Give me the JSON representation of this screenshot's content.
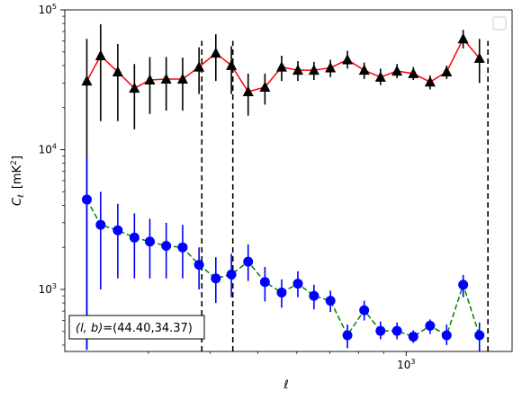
{
  "chart_data": {
    "type": "line",
    "xscale": "log",
    "yscale": "log",
    "xlabel": "ℓ",
    "ylabel_main": "C",
    "ylabel_sub": "ℓ",
    "ylabel_unit": "[mK",
    "ylabel_unit_sup": "2",
    "ylabel_unit_end": "]",
    "xlim": [
      203,
      1640
    ],
    "ylim": [
      360,
      100000
    ],
    "x_major_ticks": [
      {
        "value": 1000,
        "base": "10",
        "exp": "3"
      }
    ],
    "y_major_ticks": [
      {
        "value": 1000,
        "base": "10",
        "exp": "3"
      },
      {
        "value": 10000,
        "base": "10",
        "exp": "4"
      },
      {
        "value": 100000,
        "base": "10",
        "exp": "5"
      }
    ],
    "annotation": {
      "text": "(l, b)=(44.40,34.37)",
      "italic_part": "(l, b)",
      "rest": "=(44.40,34.37)"
    },
    "legend": {
      "placement": "top-right",
      "entries": []
    },
    "vertical_lines": [
      385,
      445,
      1465
    ],
    "series": [
      {
        "color": "#ff0000",
        "marker": "triangle",
        "marker_color": "#000000",
        "errbar_color": "#000000",
        "linestyle": "solid",
        "points": [
          {
            "x": 225,
            "y": 31000,
            "lo": 370,
            "hi": 62000
          },
          {
            "x": 240,
            "y": 47000,
            "lo": 16000,
            "hi": 79000
          },
          {
            "x": 260,
            "y": 36000,
            "lo": 16000,
            "hi": 57000
          },
          {
            "x": 281,
            "y": 27500,
            "lo": 14000,
            "hi": 41000
          },
          {
            "x": 302,
            "y": 31500,
            "lo": 18000,
            "hi": 46000
          },
          {
            "x": 326,
            "y": 32000,
            "lo": 19000,
            "hi": 46000
          },
          {
            "x": 352,
            "y": 32000,
            "lo": 19000,
            "hi": 45500
          },
          {
            "x": 380,
            "y": 39000,
            "lo": 25000,
            "hi": 54000
          },
          {
            "x": 411,
            "y": 49000,
            "lo": 31000,
            "hi": 67000
          },
          {
            "x": 442,
            "y": 40000,
            "lo": 25000,
            "hi": 55000
          },
          {
            "x": 478,
            "y": 26000,
            "lo": 17500,
            "hi": 35000
          },
          {
            "x": 517,
            "y": 28000,
            "lo": 21000,
            "hi": 35000
          },
          {
            "x": 559,
            "y": 39000,
            "lo": 31000,
            "hi": 47000
          },
          {
            "x": 603,
            "y": 37000,
            "lo": 31000,
            "hi": 43000
          },
          {
            "x": 650,
            "y": 37000,
            "lo": 31500,
            "hi": 42500
          },
          {
            "x": 702,
            "y": 38500,
            "lo": 33000,
            "hi": 44000
          },
          {
            "x": 760,
            "y": 44000,
            "lo": 38000,
            "hi": 51000
          },
          {
            "x": 822,
            "y": 37000,
            "lo": 32000,
            "hi": 42000
          },
          {
            "x": 887,
            "y": 33000,
            "lo": 29000,
            "hi": 38000
          },
          {
            "x": 958,
            "y": 36500,
            "lo": 32500,
            "hi": 41000
          },
          {
            "x": 1034,
            "y": 35000,
            "lo": 31500,
            "hi": 39000
          },
          {
            "x": 1118,
            "y": 30500,
            "lo": 27000,
            "hi": 34000
          },
          {
            "x": 1208,
            "y": 36000,
            "lo": 32000,
            "hi": 40000
          },
          {
            "x": 1305,
            "y": 62000,
            "lo": 53000,
            "hi": 72000
          },
          {
            "x": 1408,
            "y": 45000,
            "lo": 30000,
            "hi": 62000
          }
        ]
      },
      {
        "color": "#008000",
        "marker": "circle",
        "marker_color": "#0000ff",
        "errbar_color": "#0000ff",
        "linestyle": "dashed",
        "points": [
          {
            "x": 225,
            "y": 4400,
            "lo": 370,
            "hi": 8800
          },
          {
            "x": 240,
            "y": 2900,
            "lo": 1000,
            "hi": 5000
          },
          {
            "x": 260,
            "y": 2650,
            "lo": 1200,
            "hi": 4100
          },
          {
            "x": 281,
            "y": 2350,
            "lo": 1200,
            "hi": 3500
          },
          {
            "x": 302,
            "y": 2200,
            "lo": 1200,
            "hi": 3200
          },
          {
            "x": 326,
            "y": 2050,
            "lo": 1200,
            "hi": 3000
          },
          {
            "x": 352,
            "y": 2000,
            "lo": 1200,
            "hi": 2900
          },
          {
            "x": 380,
            "y": 1500,
            "lo": 1000,
            "hi": 2000
          },
          {
            "x": 411,
            "y": 1200,
            "lo": 800,
            "hi": 1700
          },
          {
            "x": 442,
            "y": 1280,
            "lo": 880,
            "hi": 1800
          },
          {
            "x": 478,
            "y": 1580,
            "lo": 1150,
            "hi": 2100
          },
          {
            "x": 517,
            "y": 1130,
            "lo": 820,
            "hi": 1450
          },
          {
            "x": 559,
            "y": 950,
            "lo": 740,
            "hi": 1180
          },
          {
            "x": 603,
            "y": 1100,
            "lo": 880,
            "hi": 1350
          },
          {
            "x": 650,
            "y": 900,
            "lo": 720,
            "hi": 1080
          },
          {
            "x": 702,
            "y": 830,
            "lo": 690,
            "hi": 980
          },
          {
            "x": 760,
            "y": 470,
            "lo": 380,
            "hi": 560
          },
          {
            "x": 822,
            "y": 710,
            "lo": 600,
            "hi": 830
          },
          {
            "x": 887,
            "y": 505,
            "lo": 440,
            "hi": 590
          },
          {
            "x": 958,
            "y": 505,
            "lo": 440,
            "hi": 580
          },
          {
            "x": 1034,
            "y": 460,
            "lo": 415,
            "hi": 510
          },
          {
            "x": 1118,
            "y": 550,
            "lo": 480,
            "hi": 610
          },
          {
            "x": 1208,
            "y": 470,
            "lo": 400,
            "hi": 560
          },
          {
            "x": 1305,
            "y": 1080,
            "lo": 880,
            "hi": 1270
          },
          {
            "x": 1408,
            "y": 470,
            "lo": 360,
            "hi": 580
          }
        ]
      }
    ]
  }
}
